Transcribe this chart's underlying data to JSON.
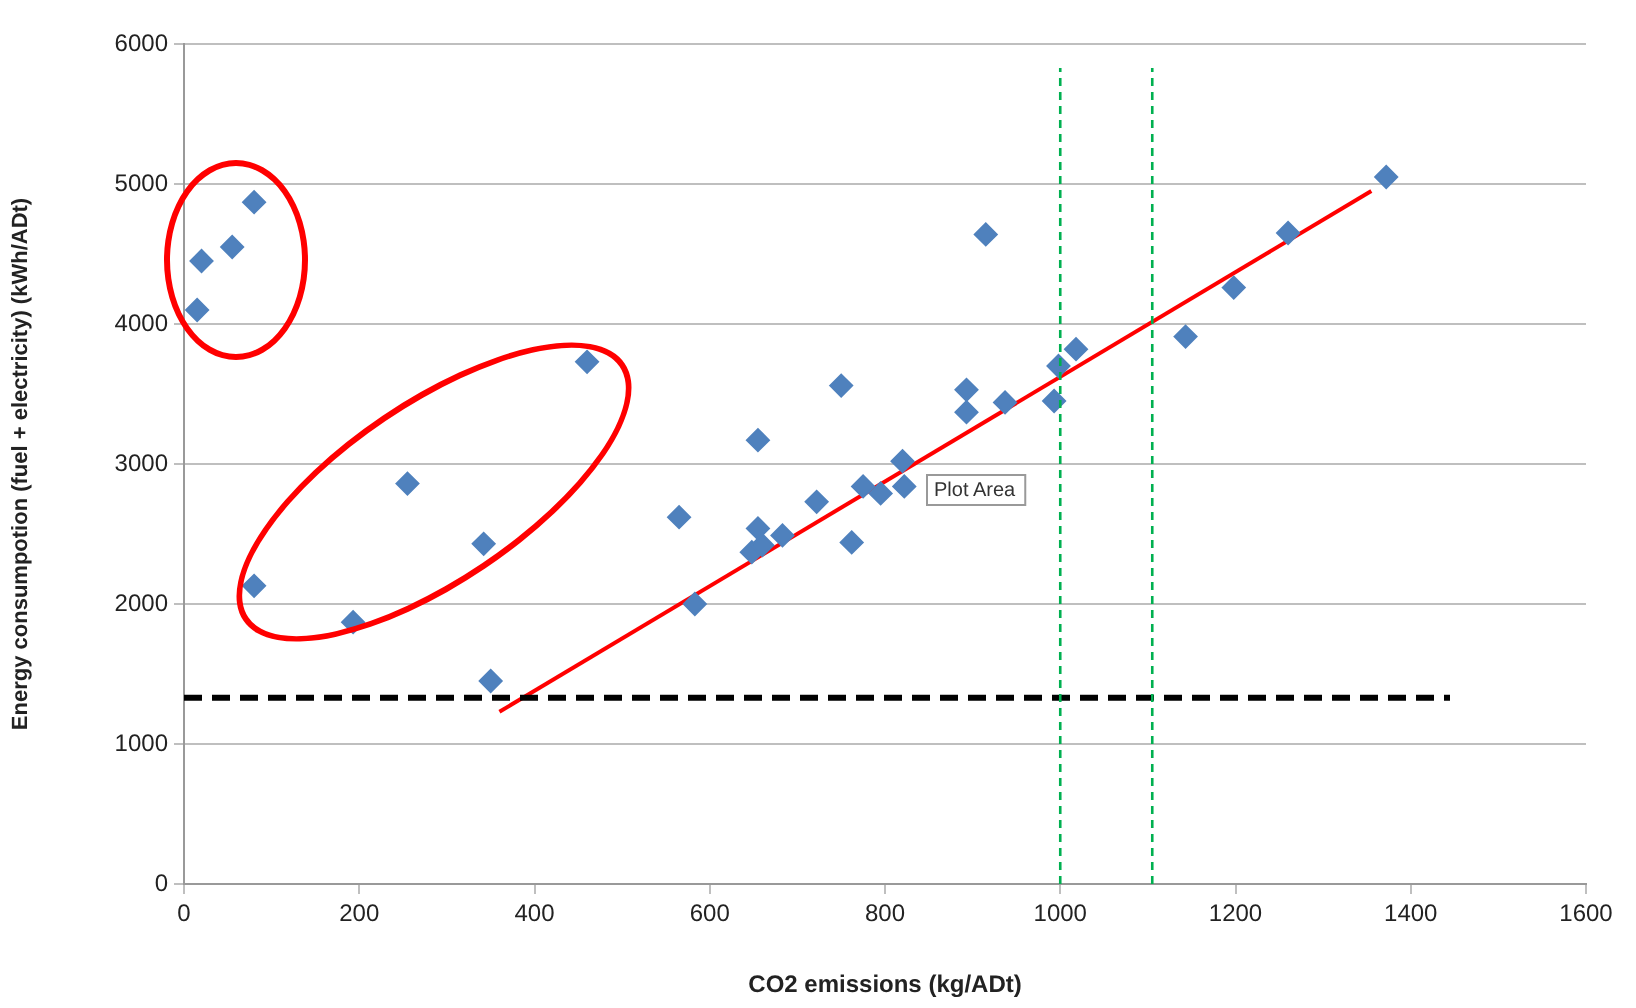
{
  "chart_data": {
    "type": "scatter",
    "xlabel": "CO2 emissions (kg/ADt)",
    "ylabel": "Energy consumpotion (fuel + electricity) (kWh/ADt)",
    "xlim": [
      0,
      1600
    ],
    "xticks": [
      0,
      200,
      400,
      600,
      800,
      1000,
      1200,
      1400,
      1600
    ],
    "ylim": [
      0,
      6000
    ],
    "yticks": [
      0,
      1000,
      2000,
      3000,
      4000,
      5000,
      6000
    ],
    "grid": "y",
    "legend": false,
    "series": [
      {
        "type": "scatter",
        "marker": "diamond",
        "color": "#4f81bd",
        "x": [
          15,
          20,
          55,
          80,
          80,
          193,
          255,
          342,
          350,
          460,
          565,
          583,
          648,
          655,
          655,
          660,
          683,
          722,
          750,
          762,
          775,
          795,
          820,
          822,
          893,
          893,
          915,
          937,
          993,
          998,
          1018,
          1143,
          1198,
          1260,
          1372
        ],
        "values": [
          4100,
          4450,
          4550,
          4870,
          2130,
          1870,
          2860,
          2430,
          1450,
          3730,
          2620,
          2000,
          2370,
          2540,
          3170,
          2420,
          2490,
          2730,
          3560,
          2440,
          2840,
          2790,
          3020,
          2840,
          3370,
          3530,
          4640,
          3440,
          3450,
          3700,
          3820,
          3910,
          4260,
          4650,
          5050
        ]
      },
      {
        "type": "line",
        "color": "#ff0000",
        "x": [
          360,
          1355
        ],
        "values": [
          1230,
          4950
        ]
      }
    ],
    "ref_lines": [
      {
        "axis": "y",
        "value": 1330,
        "color": "#000000",
        "line_style": "dashed"
      },
      {
        "axis": "x",
        "value": 1000,
        "color": "#00b050",
        "line_style": "dashed"
      },
      {
        "axis": "x",
        "value": 1105,
        "color": "#00b050",
        "line_style": "dashed"
      }
    ],
    "annotations": [
      "Plot Area"
    ]
  }
}
